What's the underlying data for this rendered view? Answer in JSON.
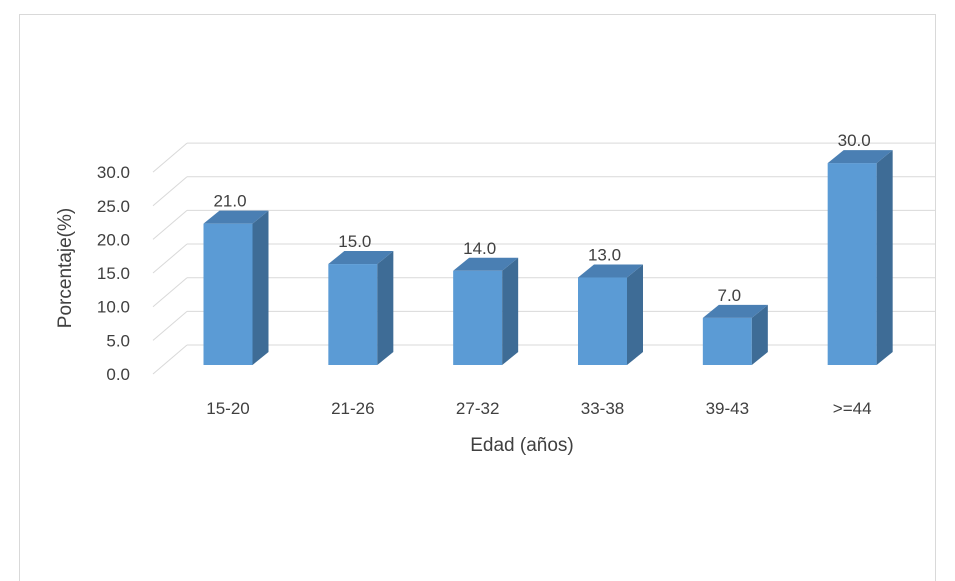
{
  "chart_data": {
    "type": "bar",
    "categories": [
      "15-20",
      "21-26",
      "27-32",
      "33-38",
      "39-43",
      ">=44"
    ],
    "values": [
      21.0,
      15.0,
      14.0,
      13.0,
      7.0,
      30.0
    ],
    "data_labels": [
      "21.0",
      "15.0",
      "14.0",
      "13.0",
      "7.0",
      "30.0"
    ],
    "y_ticks": [
      "0.0",
      "5.0",
      "10.0",
      "15.0",
      "20.0",
      "25.0",
      "30.0"
    ],
    "xlabel": "Edad (años)",
    "ylabel": "Porcentaje(%)",
    "ylim": [
      0,
      30
    ],
    "grid": true,
    "style_3d": true,
    "colors": {
      "front": "#5b9bd5",
      "side": "#3e6c96",
      "top": "#4a7fb3",
      "grid": "#d9d9d9",
      "text": "#404040"
    }
  }
}
